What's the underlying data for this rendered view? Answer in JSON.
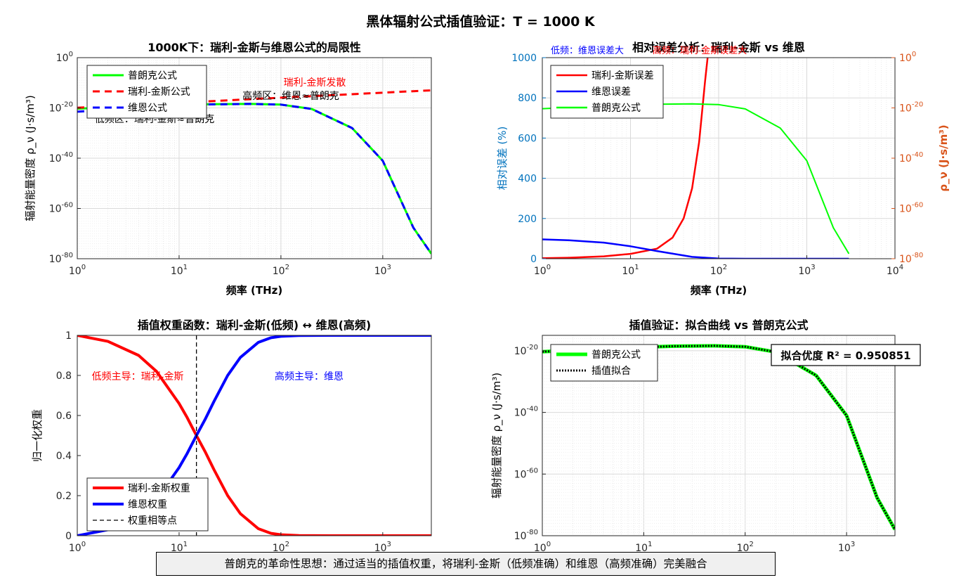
{
  "suptitle": "黑体辐射公式插值验证：T = 1000 K",
  "banner": "普朗克的革命性思想：通过适当的插值权重，将瑞利-金斯（低频准确）和维恩（高频准确）完美融合",
  "colors": {
    "planck": "#00ff00",
    "rj": "#ff0000",
    "wien": "#0000ff",
    "axis_left": "#0072bd",
    "axis_right": "#d95319",
    "grid": "#d9d9d9"
  },
  "chart_data": [
    {
      "id": "p1",
      "type": "line",
      "title": "1000K下：瑞利-金斯与维恩公式的局限性",
      "xlabel": "频率 (THz)",
      "ylabel": "辐射能量密度 ρ_ν (J·s/m³)",
      "xscale": "log",
      "yscale": "log",
      "xlim": [
        1,
        3000
      ],
      "ylim": [
        1e-80,
        1
      ],
      "xticks": [
        "10^0",
        "10^1",
        "10^2",
        "10^3"
      ],
      "yticks": [
        "10^0",
        "10^-20",
        "10^-40",
        "10^-60",
        "10^-80"
      ],
      "grid": true,
      "legend": [
        "普朗克公式",
        "瑞利-金斯公式",
        "维恩公式"
      ],
      "legend_loc": "top-left",
      "annotations": [
        "瑞利-金斯发散",
        "高频区：维恩≈普朗克",
        "低频区：瑞利-金斯≈普朗克"
      ],
      "x": [
        1,
        2,
        5,
        10,
        20,
        50,
        100,
        200,
        500,
        1000,
        2000,
        3000
      ],
      "series": [
        {
          "name": "普朗克公式",
          "y": [
            5e-21,
            1.5e-20,
            6e-20,
            1.5e-19,
            3e-19,
            4e-19,
            2e-19,
            4e-21,
            1e-28,
            1e-41,
            2e-68,
            1e-78
          ]
        },
        {
          "name": "瑞利-金斯公式",
          "y": [
            1.2e-20,
            4.6e-20,
            2.9e-19,
            1.2e-18,
            4.6e-18,
            2.9e-17,
            1.2e-16,
            4.6e-16,
            2.9e-15,
            1.2e-14,
            4.6e-14,
            1e-13
          ]
        },
        {
          "name": "维恩公式",
          "y": [
            3e-22,
            2e-21,
            2e-20,
            8e-20,
            2.5e-19,
            4e-19,
            2e-19,
            4e-21,
            1e-28,
            1e-41,
            2e-68,
            1e-78
          ]
        }
      ]
    },
    {
      "id": "p2",
      "type": "line",
      "title": "相对误差分析：瑞利-金斯 vs 维恩",
      "xlabel": "频率 (THz)",
      "ylabel": "相对误差 (%)",
      "ylabel_right": "ρ_ν (J·s/m³)",
      "xscale": "log",
      "xlim": [
        1,
        10000
      ],
      "ylim": [
        0,
        1000
      ],
      "ylim_right": [
        1e-80,
        1
      ],
      "xticks": [
        "10^0",
        "10^1",
        "10^2",
        "10^3",
        "10^4"
      ],
      "yticks": [
        "0",
        "200",
        "400",
        "600",
        "800",
        "1000"
      ],
      "yticks_right": [
        "10^0",
        "10^-20",
        "10^-40",
        "10^-60",
        "10^-80"
      ],
      "grid": true,
      "legend": [
        "瑞利-金斯误差",
        "维恩误差",
        "普朗克公式"
      ],
      "legend_loc": "top-left",
      "annotations": [
        "低频：维恩误差大",
        "高频：瑞利-金斯误差大"
      ],
      "series": [
        {
          "name": "瑞利-金斯误差",
          "axis": "left",
          "x": [
            1,
            2,
            5,
            10,
            20,
            30,
            40,
            50,
            60,
            70,
            75
          ],
          "y": [
            2.4,
            4.8,
            12,
            24,
            50,
            105,
            200,
            350,
            580,
            880,
            1000
          ]
        },
        {
          "name": "维恩误差",
          "axis": "left",
          "x": [
            1,
            2,
            5,
            10,
            20,
            50,
            100,
            200,
            500,
            1000,
            3000
          ],
          "y": [
            96,
            92,
            80,
            62,
            38,
            9,
            1,
            0,
            0,
            0,
            0
          ]
        },
        {
          "name": "普朗克公式",
          "axis": "right",
          "x": [
            1,
            2,
            5,
            10,
            20,
            50,
            100,
            200,
            500,
            1000,
            2000,
            3000
          ],
          "y": [
            5e-21,
            1.5e-20,
            6e-20,
            1.5e-19,
            3e-19,
            4e-19,
            2e-19,
            4e-21,
            1e-28,
            1e-41,
            2e-68,
            1e-78
          ]
        }
      ]
    },
    {
      "id": "p3",
      "type": "line",
      "title": "插值权重函数：瑞利-金斯(低频) ↔ 维恩(高频)",
      "xlabel": "",
      "ylabel": "归一化权重",
      "xscale": "log",
      "xlim": [
        1,
        3000
      ],
      "ylim": [
        0,
        1
      ],
      "xticks": [
        "10^0",
        "10^1",
        "10^2",
        "10^3"
      ],
      "yticks": [
        "0",
        "0.2",
        "0.4",
        "0.6",
        "0.8",
        "1"
      ],
      "grid": false,
      "legend": [
        "瑞利-金斯权重",
        "维恩权重",
        "权重相等点"
      ],
      "legend_loc": "bottom-left",
      "annotations": [
        "低频主导：瑞利-金斯",
        "高频主导：维恩"
      ],
      "x": [
        1,
        2,
        4,
        6,
        8,
        10,
        12,
        14.8,
        18,
        22,
        30,
        40,
        60,
        80,
        100,
        150,
        300,
        1000,
        3000
      ],
      "series": [
        {
          "name": "瑞利-金斯权重",
          "y": [
            1.0,
            0.97,
            0.9,
            0.82,
            0.73,
            0.66,
            0.59,
            0.5,
            0.42,
            0.33,
            0.2,
            0.11,
            0.035,
            0.012,
            0.005,
            0.001,
            0,
            0,
            0
          ]
        },
        {
          "name": "维恩权重",
          "y": [
            0.0,
            0.03,
            0.1,
            0.18,
            0.27,
            0.34,
            0.41,
            0.5,
            0.58,
            0.67,
            0.8,
            0.89,
            0.965,
            0.988,
            0.995,
            0.999,
            1,
            1,
            1
          ]
        }
      ],
      "vline": {
        "name": "权重相等点",
        "x": 14.8
      }
    },
    {
      "id": "p4",
      "type": "line",
      "title": "插值验证：拟合曲线 vs 普朗克公式",
      "xlabel": "",
      "ylabel": "辐射能量密度 ρ_ν (J·s/m³)",
      "xscale": "log",
      "yscale": "log",
      "xlim": [
        1,
        3000
      ],
      "ylim": [
        1e-80,
        1e-15
      ],
      "xticks": [
        "10^0",
        "10^1",
        "10^2",
        "10^3"
      ],
      "yticks": [
        "10^-20",
        "10^-40",
        "10^-60",
        "10^-80"
      ],
      "grid": true,
      "legend": [
        "普朗克公式",
        "插值拟合"
      ],
      "legend_loc": "top-left",
      "annotations": [
        "拟合优度 R² = 0.950851"
      ],
      "x": [
        1,
        2,
        5,
        10,
        20,
        50,
        100,
        200,
        500,
        1000,
        2000,
        3000
      ],
      "series": [
        {
          "name": "普朗克公式",
          "y": [
            5e-21,
            1.5e-20,
            6e-20,
            1.5e-19,
            3e-19,
            4e-19,
            2e-19,
            4e-21,
            1e-28,
            1e-41,
            2e-68,
            1e-78
          ]
        },
        {
          "name": "插值拟合",
          "y": [
            5e-21,
            1.5e-20,
            6e-20,
            1.5e-19,
            3e-19,
            4e-19,
            2e-19,
            4e-21,
            1e-28,
            1e-41,
            2e-68,
            1e-78
          ]
        }
      ]
    }
  ]
}
